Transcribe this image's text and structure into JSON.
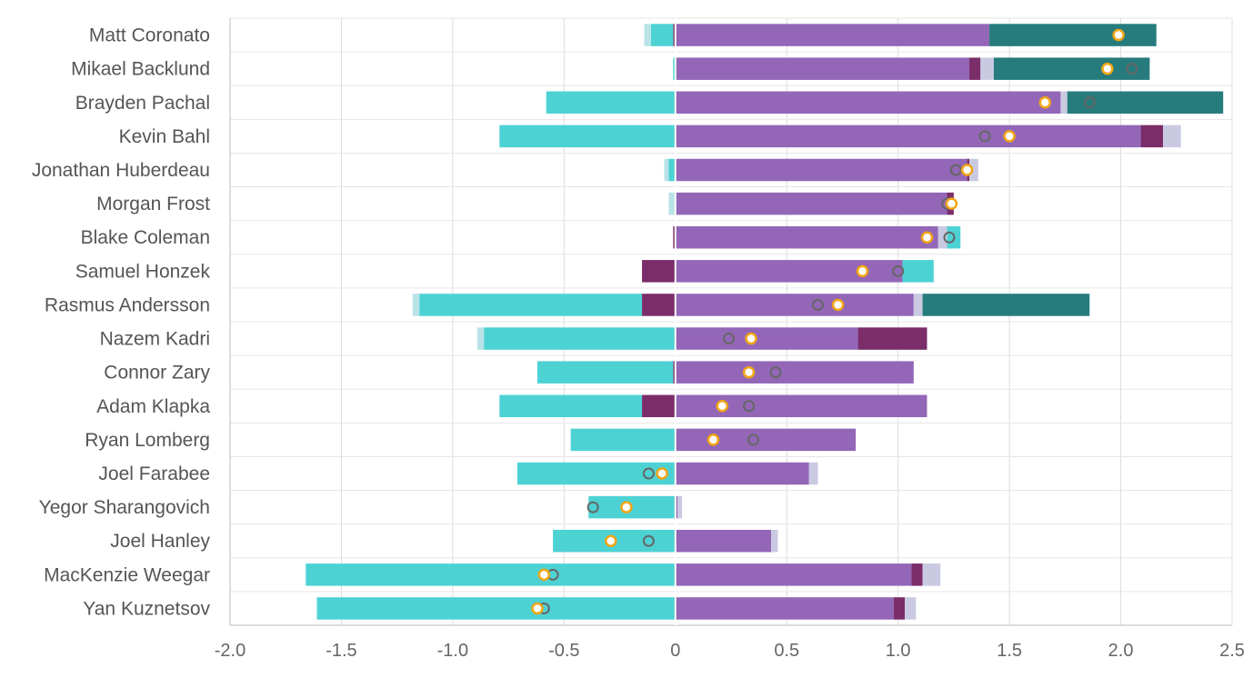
{
  "chart_data": {
    "type": "bar",
    "orientation": "horizontal",
    "stacked": "diverging",
    "title": "",
    "xlabel": "",
    "ylabel": "",
    "xlim": [
      -2.0,
      2.5
    ],
    "xticks": [
      -2.0,
      -1.5,
      -1.0,
      -0.5,
      0,
      0.5,
      1.0,
      1.5,
      2.0,
      2.5
    ],
    "xtick_labels": [
      "-2.0",
      "-1.5",
      "-1.0",
      "-0.5",
      "0",
      "0.5",
      "1.0",
      "1.5",
      "2.0",
      "2.5"
    ],
    "grid": true,
    "colors": {
      "purple": "#9366b7",
      "dark_purple": "#7b2d6a",
      "lavender": "#c9c9e2",
      "cyan": "#4dd2d4",
      "light_cyan": "#b9e3e6",
      "teal": "#267b7d",
      "marker_gray": "#666666",
      "marker_orange": "#f2a516",
      "grid": "#dddddd",
      "axis": "#bbbbbb"
    },
    "categories": [
      "Matt Coronato",
      "Mikael Backlund",
      "Brayden Pachal",
      "Kevin Bahl",
      "Jonathan Huberdeau",
      "Morgan Frost",
      "Blake Coleman",
      "Samuel Honzek",
      "Rasmus Andersson",
      "Nazem Kadri",
      "Connor Zary",
      "Adam Klapka",
      "Ryan Lomberg",
      "Joel Farabee",
      "Yegor Sharangovich",
      "Joel Hanley",
      "MacKenzie Weegar",
      "Yan Kuznetsov"
    ],
    "rows": [
      {
        "name": "Matt Coronato",
        "segments": [
          {
            "color": "purple",
            "start": 0,
            "end": 1.41
          },
          {
            "color": "teal",
            "start": 1.41,
            "end": 2.16
          },
          {
            "color": "dark_purple",
            "start": -0.01,
            "end": 0
          },
          {
            "color": "cyan",
            "start": -0.11,
            "end": -0.01
          },
          {
            "color": "light_cyan",
            "start": -0.14,
            "end": -0.11
          }
        ],
        "gray_marker": null,
        "orange_marker": 1.99
      },
      {
        "name": "Mikael Backlund",
        "segments": [
          {
            "color": "purple",
            "start": 0,
            "end": 1.32
          },
          {
            "color": "dark_purple",
            "start": 1.32,
            "end": 1.37
          },
          {
            "color": "lavender",
            "start": 1.37,
            "end": 1.43
          },
          {
            "color": "teal",
            "start": 1.43,
            "end": 2.13
          },
          {
            "color": "cyan",
            "start": -0.01,
            "end": 0
          }
        ],
        "gray_marker": 2.05,
        "orange_marker": 1.94
      },
      {
        "name": "Brayden Pachal",
        "segments": [
          {
            "color": "purple",
            "start": 0,
            "end": 1.73
          },
          {
            "color": "lavender",
            "start": 1.73,
            "end": 1.76
          },
          {
            "color": "teal",
            "start": 1.76,
            "end": 2.46
          },
          {
            "color": "cyan",
            "start": -0.58,
            "end": 0
          }
        ],
        "gray_marker": 1.86,
        "orange_marker": 1.66
      },
      {
        "name": "Kevin Bahl",
        "segments": [
          {
            "color": "purple",
            "start": 0,
            "end": 2.09
          },
          {
            "color": "dark_purple",
            "start": 2.09,
            "end": 2.19
          },
          {
            "color": "lavender",
            "start": 2.19,
            "end": 2.27
          },
          {
            "color": "cyan",
            "start": -0.79,
            "end": 0
          }
        ],
        "gray_marker": 1.39,
        "orange_marker": 1.5
      },
      {
        "name": "Jonathan Huberdeau",
        "segments": [
          {
            "color": "purple",
            "start": 0,
            "end": 1.31
          },
          {
            "color": "dark_purple",
            "start": 1.31,
            "end": 1.32
          },
          {
            "color": "lavender",
            "start": 1.32,
            "end": 1.36
          },
          {
            "color": "cyan",
            "start": -0.03,
            "end": 0
          },
          {
            "color": "light_cyan",
            "start": -0.05,
            "end": -0.03
          }
        ],
        "gray_marker": 1.26,
        "orange_marker": 1.31
      },
      {
        "name": "Morgan Frost",
        "segments": [
          {
            "color": "purple",
            "start": 0,
            "end": 1.22
          },
          {
            "color": "dark_purple",
            "start": 1.22,
            "end": 1.25
          },
          {
            "color": "light_cyan",
            "start": -0.03,
            "end": 0
          }
        ],
        "gray_marker": 1.22,
        "orange_marker": 1.24
      },
      {
        "name": "Blake Coleman",
        "segments": [
          {
            "color": "purple",
            "start": 0,
            "end": 1.18
          },
          {
            "color": "lavender",
            "start": 1.18,
            "end": 1.22
          },
          {
            "color": "cyan",
            "start": 1.22,
            "end": 1.28
          },
          {
            "color": "dark_purple",
            "start": -0.01,
            "end": 0
          }
        ],
        "gray_marker": 1.23,
        "orange_marker": 1.13
      },
      {
        "name": "Samuel Honzek",
        "segments": [
          {
            "color": "purple",
            "start": 0,
            "end": 1.02
          },
          {
            "color": "cyan",
            "start": 1.02,
            "end": 1.16
          },
          {
            "color": "dark_purple",
            "start": -0.15,
            "end": 0
          }
        ],
        "gray_marker": 1.0,
        "orange_marker": 0.84
      },
      {
        "name": "Rasmus Andersson",
        "segments": [
          {
            "color": "purple",
            "start": 0,
            "end": 1.07
          },
          {
            "color": "lavender",
            "start": 1.07,
            "end": 1.11
          },
          {
            "color": "teal",
            "start": 1.11,
            "end": 1.86
          },
          {
            "color": "dark_purple",
            "start": -0.15,
            "end": 0
          },
          {
            "color": "cyan",
            "start": -1.15,
            "end": -0.15
          },
          {
            "color": "light_cyan",
            "start": -1.18,
            "end": -1.15
          }
        ],
        "gray_marker": 0.64,
        "orange_marker": 0.73
      },
      {
        "name": "Nazem Kadri",
        "segments": [
          {
            "color": "purple",
            "start": 0,
            "end": 0.82
          },
          {
            "color": "dark_purple",
            "start": 0.82,
            "end": 1.13
          },
          {
            "color": "cyan",
            "start": -0.86,
            "end": 0
          },
          {
            "color": "light_cyan",
            "start": -0.89,
            "end": -0.86
          }
        ],
        "gray_marker": 0.24,
        "orange_marker": 0.34
      },
      {
        "name": "Connor Zary",
        "segments": [
          {
            "color": "purple",
            "start": 0,
            "end": 1.07
          },
          {
            "color": "dark_purple",
            "start": -0.01,
            "end": 0
          },
          {
            "color": "cyan",
            "start": -0.62,
            "end": -0.01
          }
        ],
        "gray_marker": 0.45,
        "orange_marker": 0.33
      },
      {
        "name": "Adam Klapka",
        "segments": [
          {
            "color": "purple",
            "start": 0,
            "end": 1.13
          },
          {
            "color": "dark_purple",
            "start": -0.15,
            "end": 0
          },
          {
            "color": "cyan",
            "start": -0.79,
            "end": -0.15
          }
        ],
        "gray_marker": 0.33,
        "orange_marker": 0.21
      },
      {
        "name": "Ryan Lomberg",
        "segments": [
          {
            "color": "purple",
            "start": 0,
            "end": 0.81
          },
          {
            "color": "cyan",
            "start": -0.47,
            "end": 0
          }
        ],
        "gray_marker": 0.35,
        "orange_marker": 0.17
      },
      {
        "name": "Joel Farabee",
        "segments": [
          {
            "color": "purple",
            "start": 0,
            "end": 0.6
          },
          {
            "color": "lavender",
            "start": 0.6,
            "end": 0.64
          },
          {
            "color": "cyan",
            "start": -0.71,
            "end": 0
          }
        ],
        "gray_marker": -0.12,
        "orange_marker": -0.06
      },
      {
        "name": "Yegor Sharangovich",
        "segments": [
          {
            "color": "purple",
            "start": 0,
            "end": 0.01
          },
          {
            "color": "lavender",
            "start": 0.01,
            "end": 0.03
          },
          {
            "color": "cyan",
            "start": -0.39,
            "end": 0
          }
        ],
        "gray_marker": -0.37,
        "orange_marker": -0.22
      },
      {
        "name": "Joel Hanley",
        "segments": [
          {
            "color": "purple",
            "start": 0,
            "end": 0.43
          },
          {
            "color": "lavender",
            "start": 0.43,
            "end": 0.46
          },
          {
            "color": "cyan",
            "start": -0.55,
            "end": 0
          }
        ],
        "gray_marker": -0.12,
        "orange_marker": -0.29
      },
      {
        "name": "MacKenzie Weegar",
        "segments": [
          {
            "color": "purple",
            "start": 0,
            "end": 1.06
          },
          {
            "color": "dark_purple",
            "start": 1.06,
            "end": 1.11
          },
          {
            "color": "lavender",
            "start": 1.11,
            "end": 1.19
          },
          {
            "color": "cyan",
            "start": -1.66,
            "end": 0
          }
        ],
        "gray_marker": -0.55,
        "orange_marker": -0.59
      },
      {
        "name": "Yan Kuznetsov",
        "segments": [
          {
            "color": "purple",
            "start": 0,
            "end": 0.98
          },
          {
            "color": "dark_purple",
            "start": 0.98,
            "end": 1.03
          },
          {
            "color": "lavender",
            "start": 1.03,
            "end": 1.08
          },
          {
            "color": "cyan",
            "start": -1.61,
            "end": 0
          }
        ],
        "gray_marker": -0.59,
        "orange_marker": -0.62
      }
    ]
  }
}
